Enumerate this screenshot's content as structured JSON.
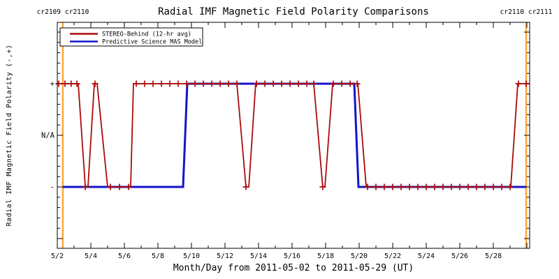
{
  "chart_data": {
    "type": "line",
    "title": "Radial IMF Magnetic Field Polarity Comparisons",
    "xlabel": "Month/Day from 2011-05-02 to 2011-05-29 (UT)",
    "ylabel": "Radial IMF Magnetic Field Polarity (-,+)",
    "x_range_days": [
      2,
      30.17
    ],
    "y_range": [
      -2.2,
      2.2
    ],
    "grid": false,
    "legend_position": "top-left",
    "boundary_color": "#FFA640",
    "axis_color": "#000000",
    "y_tick_labels": [
      {
        "value": 1,
        "label": "+"
      },
      {
        "value": 0,
        "label": "N/A"
      },
      {
        "value": -1,
        "label": "-"
      }
    ],
    "x_tick_labels": [
      {
        "day": 2,
        "label": "5/2"
      },
      {
        "day": 4,
        "label": "5/4"
      },
      {
        "day": 6,
        "label": "5/6"
      },
      {
        "day": 8,
        "label": "5/8"
      },
      {
        "day": 10,
        "label": "5/10"
      },
      {
        "day": 12,
        "label": "5/12"
      },
      {
        "day": 14,
        "label": "5/14"
      },
      {
        "day": 16,
        "label": "5/16"
      },
      {
        "day": 18,
        "label": "5/18"
      },
      {
        "day": 20,
        "label": "5/20"
      },
      {
        "day": 22,
        "label": "5/22"
      },
      {
        "day": 24,
        "label": "5/24"
      },
      {
        "day": 26,
        "label": "5/26"
      },
      {
        "day": 28,
        "label": "5/28"
      }
    ],
    "carrington_boundaries": [
      {
        "day": 2.33,
        "label_left": "cr2109",
        "label_right": "cr2110"
      },
      {
        "day": 29.96,
        "label_left": "cr2110",
        "label_right": "cr2111"
      }
    ],
    "series": [
      {
        "id": "stereo-behind",
        "name": "STEREO-Behind (12-hr avg)",
        "color": "#AA0A0A",
        "line_width": 1.8,
        "marker": "plus",
        "points": [
          [
            2.0,
            1
          ],
          [
            3.25,
            1
          ],
          [
            3.67,
            -1
          ],
          [
            3.83,
            -1
          ],
          [
            4.21,
            1
          ],
          [
            4.375,
            1
          ],
          [
            5.0,
            -1
          ],
          [
            6.375,
            -1
          ],
          [
            6.54,
            1
          ],
          [
            12.71,
            1
          ],
          [
            13.25,
            -1
          ],
          [
            13.42,
            -1
          ],
          [
            13.83,
            1
          ],
          [
            17.29,
            1
          ],
          [
            17.83,
            -1
          ],
          [
            17.96,
            -1
          ],
          [
            18.42,
            1
          ],
          [
            19.92,
            1
          ],
          [
            20.42,
            -1
          ],
          [
            29.04,
            -1
          ],
          [
            29.46,
            1
          ],
          [
            30.17,
            1
          ]
        ],
        "markers": [
          [
            2.08,
            1
          ],
          [
            2.46,
            1
          ],
          [
            2.83,
            1
          ],
          [
            3.17,
            1
          ],
          [
            3.67,
            -1
          ],
          [
            4.25,
            1
          ],
          [
            5.17,
            -1
          ],
          [
            5.71,
            -1
          ],
          [
            6.25,
            -1
          ],
          [
            6.71,
            1
          ],
          [
            7.21,
            1
          ],
          [
            7.71,
            1
          ],
          [
            8.21,
            1
          ],
          [
            8.71,
            1
          ],
          [
            9.21,
            1
          ],
          [
            9.71,
            1
          ],
          [
            10.21,
            1
          ],
          [
            10.71,
            1
          ],
          [
            11.21,
            1
          ],
          [
            11.71,
            1
          ],
          [
            12.21,
            1
          ],
          [
            12.71,
            1
          ],
          [
            13.25,
            -1
          ],
          [
            13.88,
            1
          ],
          [
            14.38,
            1
          ],
          [
            14.88,
            1
          ],
          [
            15.38,
            1
          ],
          [
            15.88,
            1
          ],
          [
            16.38,
            1
          ],
          [
            16.88,
            1
          ],
          [
            17.29,
            1
          ],
          [
            17.83,
            -1
          ],
          [
            18.46,
            1
          ],
          [
            18.96,
            1
          ],
          [
            19.46,
            1
          ],
          [
            19.88,
            1
          ],
          [
            20.5,
            -1
          ],
          [
            21.0,
            -1
          ],
          [
            21.5,
            -1
          ],
          [
            22.0,
            -1
          ],
          [
            22.5,
            -1
          ],
          [
            23.0,
            -1
          ],
          [
            23.5,
            -1
          ],
          [
            24.0,
            -1
          ],
          [
            24.5,
            -1
          ],
          [
            25.0,
            -1
          ],
          [
            25.5,
            -1
          ],
          [
            26.0,
            -1
          ],
          [
            26.5,
            -1
          ],
          [
            27.0,
            -1
          ],
          [
            27.5,
            -1
          ],
          [
            28.0,
            -1
          ],
          [
            28.5,
            -1
          ],
          [
            29.0,
            -1
          ],
          [
            29.5,
            1
          ],
          [
            29.96,
            1
          ]
        ]
      },
      {
        "id": "mas-model",
        "name": "Predictive Science MAS Model",
        "color": "#1414CC",
        "line_width": 3,
        "marker": "none",
        "points": [
          [
            2.33,
            -1
          ],
          [
            9.5,
            -1
          ],
          [
            9.75,
            1
          ],
          [
            19.71,
            1
          ],
          [
            19.96,
            -1
          ],
          [
            29.96,
            -1
          ]
        ]
      }
    ]
  },
  "legend": {
    "items": [
      {
        "label": "STEREO-Behind (12-hr avg)"
      },
      {
        "label": "Predictive Science MAS Model"
      }
    ]
  }
}
